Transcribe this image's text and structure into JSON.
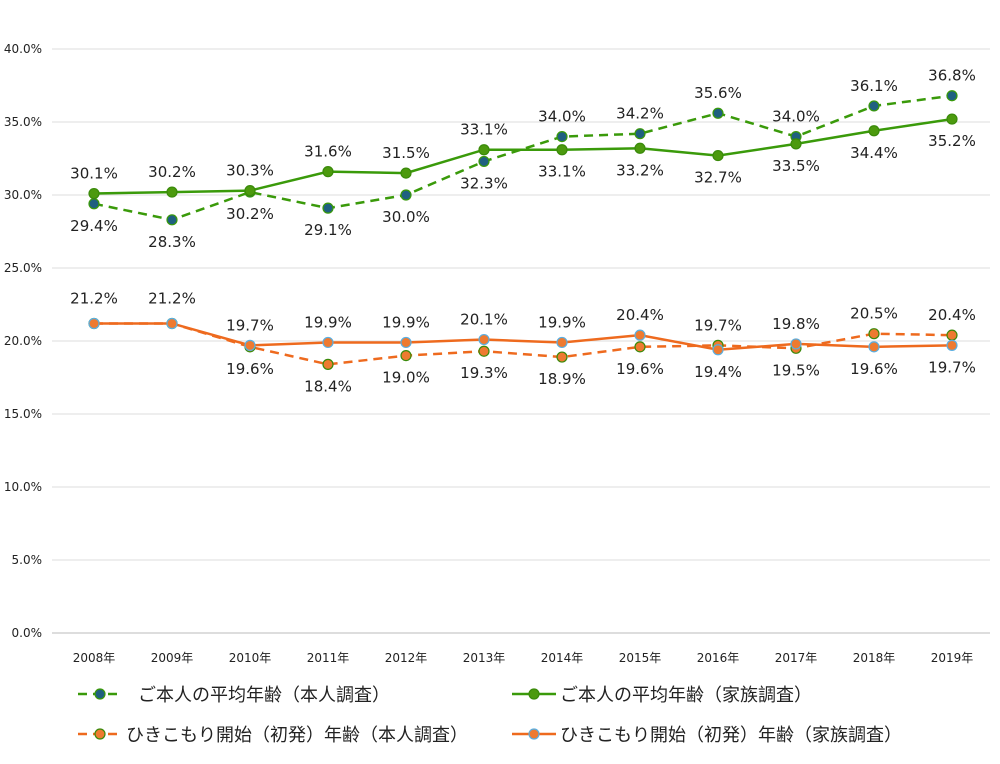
{
  "chart_data": {
    "type": "line",
    "categories": [
      "2008年",
      "2009年",
      "2010年",
      "2011年",
      "2012年",
      "2013年",
      "2014年",
      "2015年",
      "2016年",
      "2017年",
      "2018年",
      "2019年"
    ],
    "ylim": [
      0,
      40
    ],
    "yticks": [
      "0.0%",
      "5.0%",
      "10.0%",
      "15.0%",
      "20.0%",
      "25.0%",
      "30.0%",
      "35.0%",
      "40.0%"
    ],
    "grid": true,
    "legend_position": "bottom",
    "value_suffix": "%",
    "series": [
      {
        "name": "ご本人の平均年齢（本人調査）",
        "line": "dashed",
        "color": "#3a9a0a",
        "marker": "#1f6080",
        "marker_edge": "#3a9a0a",
        "values": [
          29.4,
          28.3,
          30.2,
          29.1,
          30.0,
          32.3,
          34.0,
          34.2,
          35.6,
          34.0,
          36.1,
          36.8
        ]
      },
      {
        "name": "ご本人の平均年齢（家族調査）",
        "line": "solid",
        "color": "#3a9a0a",
        "marker": "#4c9a0e",
        "marker_edge": "#3a8a0a",
        "values": [
          30.1,
          30.2,
          30.3,
          31.6,
          31.5,
          33.1,
          33.1,
          33.2,
          32.7,
          33.5,
          34.4,
          35.2
        ]
      },
      {
        "name": "ひきこもり開始（初発）年齢（本人調査）",
        "line": "dashed",
        "color": "#ee6a1e",
        "marker": "#ee7a30",
        "marker_edge": "#3a8a0a",
        "values": [
          21.2,
          21.2,
          19.6,
          18.4,
          19.0,
          19.3,
          18.9,
          19.6,
          19.7,
          19.5,
          20.5,
          20.4
        ]
      },
      {
        "name": "ひきこもり開始（初発）年齢（家族調査）",
        "line": "solid",
        "color": "#ee6a1e",
        "marker": "#ee7a30",
        "marker_edge": "#5aaee0",
        "values": [
          21.2,
          21.2,
          19.7,
          19.9,
          19.9,
          20.1,
          19.9,
          20.4,
          19.4,
          19.8,
          19.6,
          19.7
        ]
      }
    ]
  }
}
